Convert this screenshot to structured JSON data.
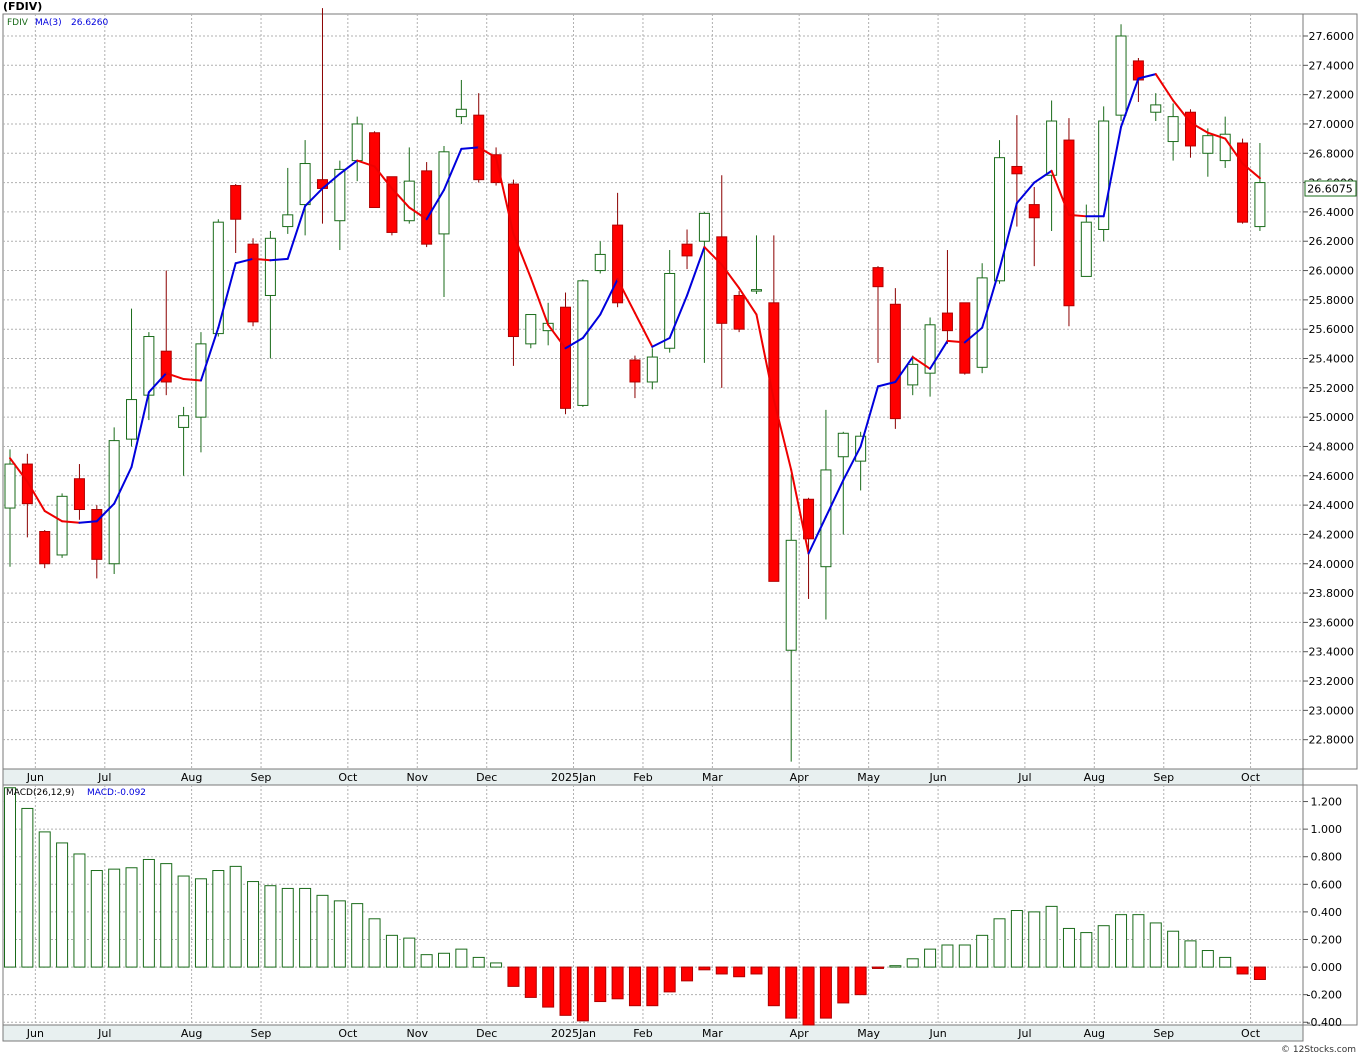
{
  "header": {
    "symbol": "(FDIV)",
    "series_label": "FDIV",
    "ma_label": "MA(3)",
    "ma_value": "26.6260",
    "last_price": "26.6075",
    "macd_label": "MACD(26,12,9)",
    "macd_value": "MACD:-0.092",
    "watermark": "© 12Stocks.com"
  },
  "colors": {
    "up_candle": "#1a6b1a",
    "down_candle": "#ff0000",
    "ma_rising": "#0000dd",
    "ma_falling": "#ee0000",
    "grid": "#b0b0b0",
    "axis_band": "#e8f0f0"
  },
  "chart_data": [
    {
      "type": "candlestick",
      "title": "FDIV",
      "ylim": [
        22.6,
        27.75
      ],
      "y_ticks": [
        "27.6000",
        "27.4000",
        "27.2000",
        "27.0000",
        "26.8000",
        "26.6000",
        "26.4000",
        "26.2000",
        "26.0000",
        "25.8000",
        "25.6000",
        "25.4000",
        "25.2000",
        "25.0000",
        "24.8000",
        "24.6000",
        "24.4000",
        "24.2000",
        "24.0000",
        "23.8000",
        "23.6000",
        "23.4000",
        "23.2000",
        "23.0000",
        "22.8000"
      ],
      "x_labels": [
        "Jun",
        "Jul",
        "Aug",
        "Sep",
        "Oct",
        "Nov",
        "Dec",
        "2025Jan",
        "Feb",
        "Mar",
        "Apr",
        "May",
        "Jun",
        "Jul",
        "Aug",
        "Sep",
        "Oct"
      ],
      "x_label_weeks": [
        1,
        5,
        10,
        14,
        19,
        23,
        27,
        32,
        36,
        40,
        45,
        49,
        53,
        58,
        62,
        66,
        71
      ],
      "grid": true,
      "candles": [
        {
          "o": 24.38,
          "h": 24.78,
          "l": 23.98,
          "c": 24.68
        },
        {
          "o": 24.68,
          "h": 24.75,
          "l": 24.18,
          "c": 24.41
        },
        {
          "o": 24.22,
          "h": 24.23,
          "l": 23.97,
          "c": 24.0
        },
        {
          "o": 24.06,
          "h": 24.48,
          "l": 24.04,
          "c": 24.46
        },
        {
          "o": 24.58,
          "h": 24.68,
          "l": 24.3,
          "c": 24.37
        },
        {
          "o": 24.37,
          "h": 24.4,
          "l": 23.9,
          "c": 24.03
        },
        {
          "o": 24.0,
          "h": 24.93,
          "l": 23.93,
          "c": 24.84
        },
        {
          "o": 24.85,
          "h": 25.74,
          "l": 24.8,
          "c": 25.12
        },
        {
          "o": 25.15,
          "h": 25.58,
          "l": 24.98,
          "c": 25.55
        },
        {
          "o": 25.45,
          "h": 26.0,
          "l": 25.15,
          "c": 25.24
        },
        {
          "o": 24.93,
          "h": 25.07,
          "l": 24.6,
          "c": 25.01
        },
        {
          "o": 25.0,
          "h": 25.58,
          "l": 24.76,
          "c": 25.5
        },
        {
          "o": 25.57,
          "h": 26.35,
          "l": 25.55,
          "c": 26.33
        },
        {
          "o": 26.58,
          "h": 26.59,
          "l": 26.12,
          "c": 26.35
        },
        {
          "o": 26.18,
          "h": 26.22,
          "l": 25.62,
          "c": 25.65
        },
        {
          "o": 25.83,
          "h": 26.27,
          "l": 25.4,
          "c": 26.22
        },
        {
          "o": 26.3,
          "h": 26.7,
          "l": 26.25,
          "c": 26.38
        },
        {
          "o": 26.45,
          "h": 26.89,
          "l": 26.24,
          "c": 26.73
        },
        {
          "o": 26.62,
          "h": 27.79,
          "l": 26.32,
          "c": 26.56
        },
        {
          "o": 26.34,
          "h": 26.75,
          "l": 26.14,
          "c": 26.69
        },
        {
          "o": 26.75,
          "h": 27.05,
          "l": 26.61,
          "c": 27.0
        },
        {
          "o": 26.94,
          "h": 26.95,
          "l": 26.43,
          "c": 26.43
        },
        {
          "o": 26.64,
          "h": 26.64,
          "l": 26.24,
          "c": 26.26
        },
        {
          "o": 26.34,
          "h": 26.84,
          "l": 26.32,
          "c": 26.61
        },
        {
          "o": 26.68,
          "h": 26.74,
          "l": 26.16,
          "c": 26.18
        },
        {
          "o": 26.25,
          "h": 26.85,
          "l": 25.82,
          "c": 26.81
        },
        {
          "o": 27.05,
          "h": 27.3,
          "l": 27.0,
          "c": 27.1
        },
        {
          "o": 27.06,
          "h": 27.21,
          "l": 26.6,
          "c": 26.62
        },
        {
          "o": 26.79,
          "h": 26.84,
          "l": 26.58,
          "c": 26.6
        },
        {
          "o": 26.59,
          "h": 26.62,
          "l": 25.35,
          "c": 25.55
        },
        {
          "o": 25.5,
          "h": 25.7,
          "l": 25.47,
          "c": 25.7
        },
        {
          "o": 25.59,
          "h": 25.78,
          "l": 25.49,
          "c": 25.64
        },
        {
          "o": 25.75,
          "h": 25.85,
          "l": 25.02,
          "c": 25.06
        },
        {
          "o": 25.08,
          "h": 25.94,
          "l": 25.07,
          "c": 25.93
        },
        {
          "o": 26.0,
          "h": 26.2,
          "l": 25.98,
          "c": 26.11
        },
        {
          "o": 26.31,
          "h": 26.53,
          "l": 25.75,
          "c": 25.78
        },
        {
          "o": 25.39,
          "h": 25.42,
          "l": 25.13,
          "c": 25.24
        },
        {
          "o": 25.24,
          "h": 25.47,
          "l": 25.19,
          "c": 25.41
        },
        {
          "o": 25.47,
          "h": 26.14,
          "l": 25.44,
          "c": 25.98
        },
        {
          "o": 26.18,
          "h": 26.28,
          "l": 26.01,
          "c": 26.1
        },
        {
          "o": 26.2,
          "h": 26.4,
          "l": 25.37,
          "c": 26.39
        },
        {
          "o": 26.23,
          "h": 26.65,
          "l": 25.2,
          "c": 25.64
        },
        {
          "o": 25.83,
          "h": 25.86,
          "l": 25.58,
          "c": 25.6
        },
        {
          "o": 25.86,
          "h": 26.24,
          "l": 25.84,
          "c": 25.87
        },
        {
          "o": 25.78,
          "h": 26.24,
          "l": 23.88,
          "c": 23.88
        },
        {
          "o": 23.41,
          "h": 24.61,
          "l": 22.65,
          "c": 24.16
        },
        {
          "o": 24.44,
          "h": 24.45,
          "l": 23.76,
          "c": 24.17
        },
        {
          "o": 23.98,
          "h": 25.05,
          "l": 23.62,
          "c": 24.64
        },
        {
          "o": 24.73,
          "h": 24.9,
          "l": 24.2,
          "c": 24.89
        },
        {
          "o": 24.7,
          "h": 24.9,
          "l": 24.5,
          "c": 24.87
        },
        {
          "o": 26.02,
          "h": 26.03,
          "l": 25.37,
          "c": 25.89
        },
        {
          "o": 25.77,
          "h": 25.88,
          "l": 24.92,
          "c": 24.99
        },
        {
          "o": 25.22,
          "h": 25.42,
          "l": 25.15,
          "c": 25.36
        },
        {
          "o": 25.3,
          "h": 25.68,
          "l": 25.14,
          "c": 25.63
        },
        {
          "o": 25.71,
          "h": 26.14,
          "l": 25.5,
          "c": 25.59
        },
        {
          "o": 25.78,
          "h": 25.78,
          "l": 25.29,
          "c": 25.3
        },
        {
          "o": 25.34,
          "h": 26.05,
          "l": 25.3,
          "c": 25.95
        },
        {
          "o": 25.93,
          "h": 26.89,
          "l": 25.91,
          "c": 26.77
        },
        {
          "o": 26.71,
          "h": 27.06,
          "l": 26.3,
          "c": 26.66
        },
        {
          "o": 26.45,
          "h": 26.57,
          "l": 26.03,
          "c": 26.36
        },
        {
          "o": 26.65,
          "h": 27.16,
          "l": 26.27,
          "c": 27.02
        },
        {
          "o": 26.89,
          "h": 27.04,
          "l": 25.62,
          "c": 25.76
        },
        {
          "o": 25.96,
          "h": 26.45,
          "l": 25.96,
          "c": 26.33
        },
        {
          "o": 26.28,
          "h": 27.12,
          "l": 26.2,
          "c": 27.02
        },
        {
          "o": 27.06,
          "h": 27.68,
          "l": 27.02,
          "c": 27.6
        },
        {
          "o": 27.43,
          "h": 27.45,
          "l": 27.15,
          "c": 27.3
        },
        {
          "o": 27.08,
          "h": 27.21,
          "l": 27.02,
          "c": 27.13
        },
        {
          "o": 26.88,
          "h": 27.14,
          "l": 26.75,
          "c": 27.05
        },
        {
          "o": 27.08,
          "h": 27.1,
          "l": 26.77,
          "c": 26.85
        },
        {
          "o": 26.8,
          "h": 26.97,
          "l": 26.64,
          "c": 26.92
        },
        {
          "o": 26.75,
          "h": 27.05,
          "l": 26.7,
          "c": 26.93
        },
        {
          "o": 26.87,
          "h": 26.9,
          "l": 26.32,
          "c": 26.33
        },
        {
          "o": 26.3,
          "h": 26.87,
          "l": 26.27,
          "c": 26.6
        }
      ],
      "ma": [
        24.72,
        24.56,
        24.36,
        24.29,
        24.28,
        24.29,
        24.41,
        24.66,
        25.17,
        25.3,
        25.26,
        25.25,
        25.61,
        26.05,
        26.08,
        26.07,
        26.08,
        26.44,
        26.56,
        26.66,
        26.75,
        26.71,
        26.56,
        26.43,
        26.35,
        26.55,
        26.83,
        26.84,
        26.77,
        26.25,
        25.95,
        25.63,
        25.47,
        25.54,
        25.7,
        25.94,
        25.71,
        25.48,
        25.54,
        25.83,
        26.16,
        26.04,
        25.88,
        25.7,
        25.12,
        24.64,
        24.07,
        24.32,
        24.57,
        24.8,
        25.21,
        25.24,
        25.41,
        25.33,
        25.52,
        25.51,
        25.61,
        26.01,
        26.46,
        26.6,
        26.68,
        26.38,
        26.37,
        26.37,
        26.98,
        27.31,
        27.34,
        27.16,
        27.01,
        26.94,
        26.9,
        26.73,
        26.63
      ]
    },
    {
      "type": "bar",
      "title": "MACD(26,12,9)",
      "ylim": [
        -0.42,
        1.32
      ],
      "y_ticks": [
        "1.200",
        "1.000",
        "0.800",
        "0.600",
        "0.400",
        "0.200",
        "0.000",
        "-0.200",
        "-0.400"
      ],
      "x_labels": [
        "Jun",
        "Jul",
        "Aug",
        "Sep",
        "Oct",
        "Nov",
        "Dec",
        "2025Jan",
        "Feb",
        "Mar",
        "Apr",
        "May",
        "Jun",
        "Jul",
        "Aug",
        "Sep",
        "Oct"
      ],
      "values": [
        1.3,
        1.15,
        0.98,
        0.9,
        0.82,
        0.7,
        0.71,
        0.72,
        0.78,
        0.75,
        0.66,
        0.64,
        0.7,
        0.73,
        0.62,
        0.59,
        0.57,
        0.57,
        0.52,
        0.48,
        0.46,
        0.35,
        0.23,
        0.21,
        0.09,
        0.1,
        0.13,
        0.07,
        0.03,
        -0.14,
        -0.22,
        -0.29,
        -0.35,
        -0.39,
        -0.25,
        -0.23,
        -0.28,
        -0.28,
        -0.18,
        -0.1,
        -0.02,
        -0.05,
        -0.07,
        -0.05,
        -0.28,
        -0.37,
        -0.42,
        -0.37,
        -0.26,
        -0.2,
        -0.01,
        0.01,
        0.06,
        0.13,
        0.16,
        0.16,
        0.23,
        0.35,
        0.41,
        0.4,
        0.44,
        0.28,
        0.25,
        0.3,
        0.38,
        0.38,
        0.32,
        0.26,
        0.19,
        0.12,
        0.07,
        -0.05,
        -0.09
      ],
      "grid": true
    }
  ]
}
